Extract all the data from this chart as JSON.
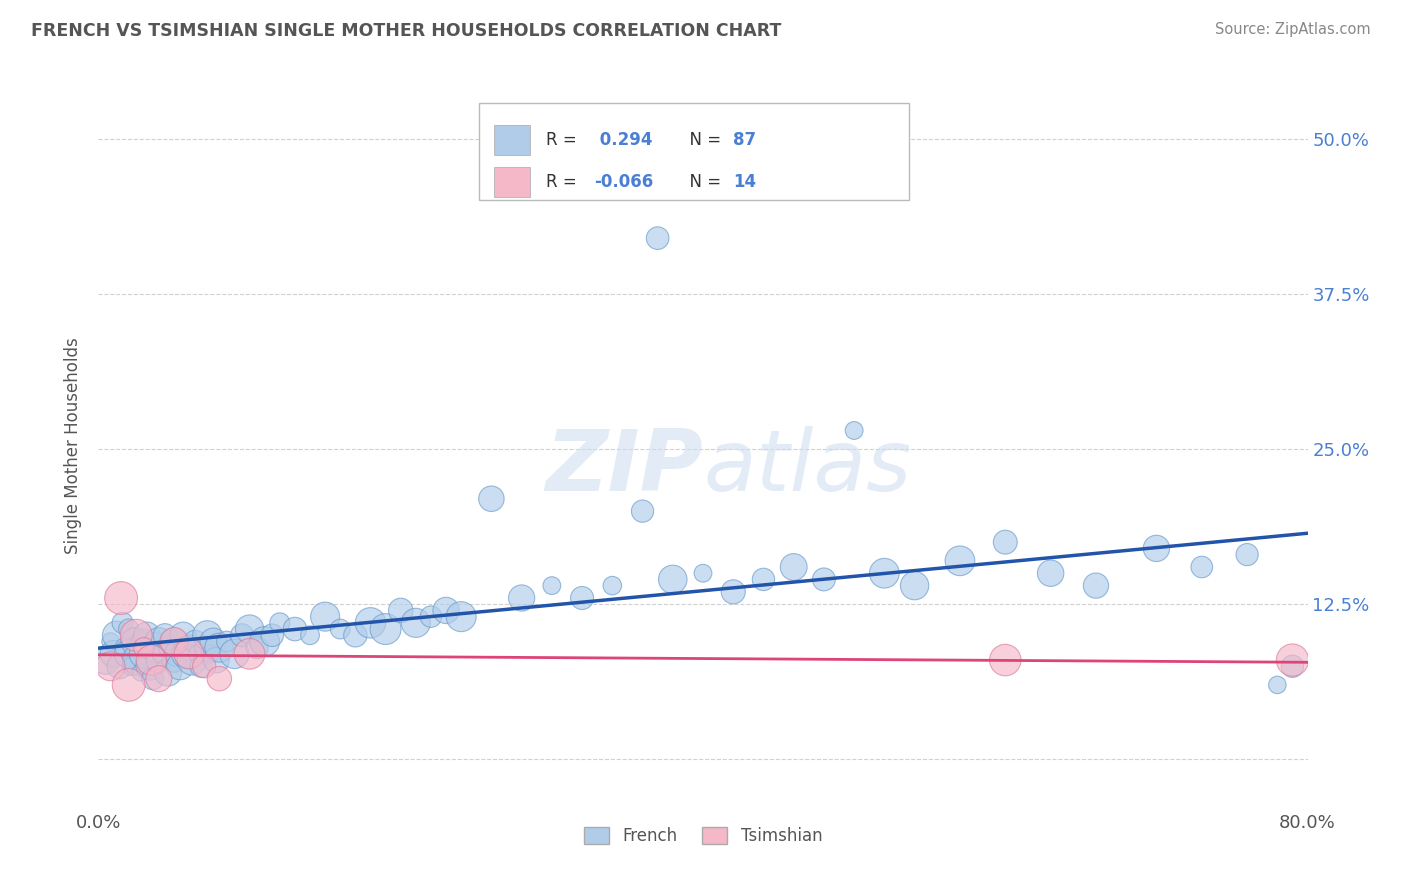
{
  "title": "FRENCH VS TSIMSHIAN SINGLE MOTHER HOUSEHOLDS CORRELATION CHART",
  "source": "Source: ZipAtlas.com",
  "ylabel": "Single Mother Households",
  "xlim": [
    0.0,
    0.8
  ],
  "ylim": [
    -0.035,
    0.54
  ],
  "ytick_positions": [
    0.0,
    0.125,
    0.25,
    0.375,
    0.5
  ],
  "ytick_labels": [
    "",
    "12.5%",
    "25.0%",
    "37.5%",
    "50.0%"
  ],
  "french_R": 0.294,
  "french_N": 87,
  "tsimshian_R": -0.066,
  "tsimshian_N": 14,
  "french_color": "#b0cce8",
  "french_edge_color": "#6699cc",
  "french_line_color": "#2255aa",
  "tsimshian_color": "#f5b8c8",
  "tsimshian_edge_color": "#dd7799",
  "tsimshian_line_color": "#dd4477",
  "background_color": "#ffffff",
  "grid_color": "#cccccc",
  "title_color": "#555555",
  "watermark_color": "#d0dff0",
  "french_x": [
    0.005,
    0.008,
    0.01,
    0.012,
    0.014,
    0.016,
    0.018,
    0.02,
    0.02,
    0.022,
    0.024,
    0.026,
    0.028,
    0.03,
    0.03,
    0.032,
    0.034,
    0.036,
    0.038,
    0.04,
    0.04,
    0.042,
    0.044,
    0.046,
    0.048,
    0.05,
    0.05,
    0.052,
    0.054,
    0.056,
    0.058,
    0.06,
    0.062,
    0.064,
    0.066,
    0.068,
    0.07,
    0.072,
    0.074,
    0.076,
    0.078,
    0.08,
    0.085,
    0.09,
    0.095,
    0.1,
    0.105,
    0.11,
    0.115,
    0.12,
    0.13,
    0.14,
    0.15,
    0.16,
    0.17,
    0.18,
    0.19,
    0.2,
    0.21,
    0.22,
    0.23,
    0.24,
    0.26,
    0.28,
    0.3,
    0.32,
    0.34,
    0.36,
    0.37,
    0.38,
    0.4,
    0.42,
    0.44,
    0.46,
    0.48,
    0.5,
    0.52,
    0.54,
    0.57,
    0.6,
    0.63,
    0.66,
    0.7,
    0.73,
    0.76,
    0.78,
    0.79
  ],
  "french_y": [
    0.08,
    0.095,
    0.085,
    0.1,
    0.075,
    0.11,
    0.09,
    0.085,
    0.105,
    0.075,
    0.095,
    0.08,
    0.07,
    0.095,
    0.085,
    0.1,
    0.075,
    0.065,
    0.09,
    0.095,
    0.08,
    0.085,
    0.1,
    0.07,
    0.09,
    0.08,
    0.095,
    0.085,
    0.075,
    0.1,
    0.085,
    0.09,
    0.08,
    0.095,
    0.085,
    0.075,
    0.09,
    0.1,
    0.085,
    0.095,
    0.08,
    0.09,
    0.095,
    0.085,
    0.1,
    0.105,
    0.09,
    0.095,
    0.1,
    0.11,
    0.105,
    0.1,
    0.115,
    0.105,
    0.1,
    0.11,
    0.105,
    0.12,
    0.11,
    0.115,
    0.12,
    0.115,
    0.21,
    0.13,
    0.14,
    0.13,
    0.14,
    0.2,
    0.42,
    0.145,
    0.15,
    0.135,
    0.145,
    0.155,
    0.145,
    0.265,
    0.15,
    0.14,
    0.16,
    0.175,
    0.15,
    0.14,
    0.17,
    0.155,
    0.165,
    0.06,
    0.075
  ],
  "tsimshian_x": [
    0.008,
    0.015,
    0.02,
    0.025,
    0.03,
    0.035,
    0.04,
    0.05,
    0.06,
    0.07,
    0.08,
    0.1,
    0.6,
    0.79
  ],
  "tsimshian_y": [
    0.075,
    0.13,
    0.06,
    0.1,
    0.09,
    0.08,
    0.065,
    0.095,
    0.085,
    0.075,
    0.065,
    0.085,
    0.08,
    0.08
  ]
}
